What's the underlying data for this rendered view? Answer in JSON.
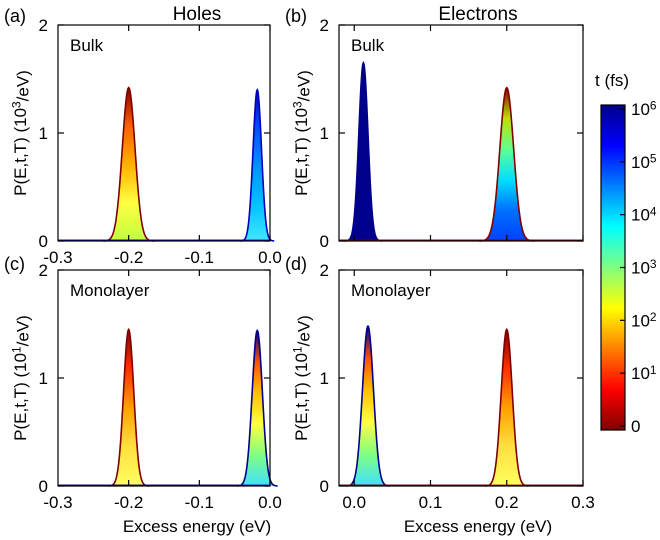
{
  "figure": {
    "col_titles": [
      "Holes",
      "Electrons"
    ],
    "shared_xlabel": "Excess energy (eV)",
    "colorbar": {
      "title": "t (fs)",
      "tick_labels": [
        "10^6",
        "10^5",
        "10^4",
        "10^3",
        "10^2",
        "10^1",
        "0"
      ],
      "colormap": [
        "#800000",
        "#ff0000",
        "#ff8000",
        "#ffff00",
        "#80ff80",
        "#00ffff",
        "#0080ff",
        "#0000ff",
        "#00008b"
      ]
    }
  },
  "chart_data": [
    {
      "panel": "(a)",
      "label": "Bulk",
      "type": "area",
      "ylabel": "P(E,t,T) (10^3/eV)",
      "xlim": [
        -0.3,
        0.0
      ],
      "ylim": [
        0,
        2
      ],
      "xticks": [
        "-0.3",
        "-0.2",
        "-0.1",
        "0.0"
      ],
      "yticks": [
        "0",
        "1",
        "2"
      ],
      "series": [
        {
          "center": -0.2,
          "peak": 1.42,
          "width": 0.009,
          "colors": [
            "#800000",
            "#ff6000",
            "#ffb000",
            "#ffff40",
            "#c0ff40"
          ]
        },
        {
          "center": -0.018,
          "peak": 1.4,
          "width": 0.006,
          "colors": [
            "#0000c0",
            "#0050ff",
            "#0090ff",
            "#00c0ff",
            "#40e8ff"
          ]
        }
      ]
    },
    {
      "panel": "(b)",
      "label": "Bulk",
      "type": "area",
      "ylabel": "P(E,t,T) (10^3/eV)",
      "xlim": [
        -0.02,
        0.3
      ],
      "ylim": [
        0,
        2
      ],
      "xticks": [],
      "yticks": [
        "0",
        "1",
        "2"
      ],
      "series": [
        {
          "center": 0.012,
          "peak": 1.65,
          "width": 0.006,
          "colors": [
            "#00008b",
            "#00008b",
            "#000090"
          ]
        },
        {
          "center": 0.2,
          "peak": 1.42,
          "width": 0.009,
          "colors": [
            "#800000",
            "#c0e000",
            "#60ff90",
            "#00e0ff",
            "#0070ff",
            "#0040ff"
          ]
        }
      ]
    },
    {
      "panel": "(c)",
      "label": "Monolayer",
      "type": "area",
      "ylabel": "P(E,t,T) (10^1/eV)",
      "xlim": [
        -0.3,
        0.0
      ],
      "ylim": [
        0,
        2
      ],
      "xticks": [
        "-0.3",
        "-0.2",
        "-0.1",
        "0.0"
      ],
      "yticks": [
        "0",
        "1",
        "2"
      ],
      "series": [
        {
          "center": -0.2,
          "peak": 1.45,
          "width": 0.0072,
          "colors": [
            "#800000",
            "#ff3000",
            "#ffa000",
            "#ffe040",
            "#ffff60"
          ]
        },
        {
          "center": -0.018,
          "peak": 1.44,
          "width": 0.0072,
          "colors": [
            "#00008b",
            "#ff5000",
            "#ffc000",
            "#ffff40",
            "#80ff80",
            "#40e0ff"
          ]
        }
      ]
    },
    {
      "panel": "(d)",
      "label": "Monolayer",
      "type": "area",
      "ylabel": "P(E,t,T) (10^1/eV)",
      "xlim": [
        -0.02,
        0.3
      ],
      "ylim": [
        0,
        2
      ],
      "xticks": [
        "0.0",
        "0.1",
        "0.2",
        "0.3"
      ],
      "yticks": [
        "0",
        "1",
        "2"
      ],
      "series": [
        {
          "center": 0.018,
          "peak": 1.48,
          "width": 0.0072,
          "colors": [
            "#00008b",
            "#ff5000",
            "#ffc000",
            "#ffff40",
            "#80ff80",
            "#40e0ff"
          ]
        },
        {
          "center": 0.2,
          "peak": 1.45,
          "width": 0.0072,
          "colors": [
            "#800000",
            "#ff3000",
            "#ffa000",
            "#ffe040",
            "#ffff60"
          ]
        }
      ]
    }
  ]
}
